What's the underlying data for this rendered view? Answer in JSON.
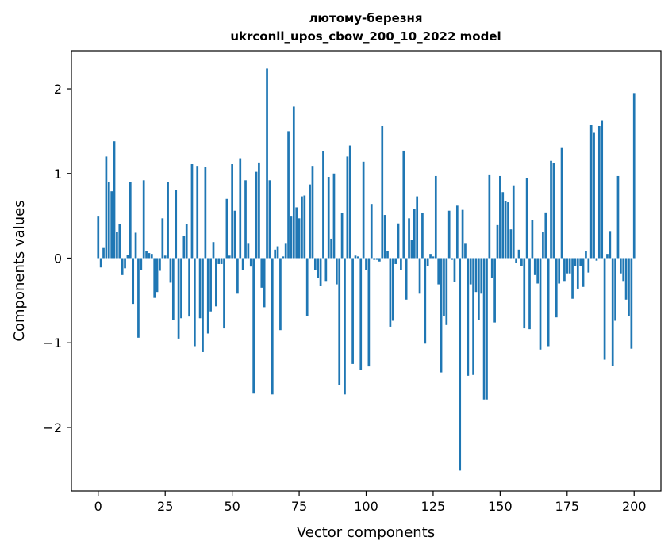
{
  "chart_data": {
    "type": "bar",
    "title_line1": "лютому-березня",
    "title_line2": "ukrconll_upos_cbow_200_10_2022 model",
    "xlabel": "Vector components",
    "ylabel": "Components values",
    "xlim": [
      -10,
      210
    ],
    "ylim": [
      -2.75,
      2.45
    ],
    "xticks": [
      0,
      25,
      50,
      75,
      100,
      125,
      150,
      175,
      200
    ],
    "yticks": [
      2,
      1,
      0,
      -1,
      -2
    ],
    "ytick_labels": [
      "2",
      "1",
      "0",
      "−1",
      "−2"
    ],
    "bar_color": "#1f77b4",
    "values": [
      0.5,
      -0.11,
      0.12,
      1.2,
      0.9,
      0.79,
      1.38,
      0.31,
      0.4,
      -0.2,
      -0.12,
      0.04,
      0.9,
      -0.54,
      0.3,
      -0.94,
      -0.14,
      0.92,
      0.08,
      0.06,
      0.05,
      -0.47,
      -0.4,
      -0.15,
      0.47,
      0.03,
      0.9,
      -0.29,
      -0.73,
      0.81,
      -0.95,
      -0.71,
      0.26,
      0.4,
      -0.69,
      1.11,
      -1.04,
      1.09,
      -0.71,
      -1.11,
      1.08,
      -0.89,
      -0.63,
      0.19,
      -0.57,
      -0.07,
      -0.07,
      -0.83,
      0.7,
      0.03,
      1.11,
      0.56,
      -0.42,
      1.18,
      -0.14,
      0.92,
      0.17,
      -0.1,
      -1.6,
      1.02,
      1.13,
      -0.35,
      -0.58,
      2.24,
      0.92,
      -1.61,
      0.1,
      0.14,
      -0.85,
      0.02,
      0.17,
      1.5,
      0.5,
      1.79,
      0.6,
      0.47,
      0.73,
      0.74,
      -0.68,
      0.87,
      1.09,
      -0.14,
      -0.23,
      -0.33,
      1.26,
      -0.27,
      0.96,
      0.23,
      1.0,
      -0.31,
      -1.5,
      0.53,
      -1.61,
      1.2,
      1.33,
      -1.25,
      0.03,
      0.02,
      -1.32,
      1.14,
      -0.14,
      -1.28,
      0.64,
      -0.02,
      -0.02,
      -0.04,
      1.56,
      0.51,
      0.08,
      -0.81,
      -0.74,
      -0.07,
      0.41,
      -0.14,
      1.27,
      -0.49,
      0.47,
      0.22,
      0.58,
      0.73,
      -0.42,
      0.53,
      -1.01,
      -0.09,
      0.05,
      0.02,
      0.97,
      -0.31,
      -1.35,
      -0.68,
      -0.79,
      0.56,
      -0.02,
      -0.28,
      0.62,
      -2.51,
      0.57,
      0.17,
      -1.39,
      -0.31,
      -1.38,
      -0.4,
      -0.73,
      -0.42,
      -1.67,
      -1.67,
      0.98,
      -0.23,
      -0.76,
      0.39,
      0.97,
      0.78,
      0.67,
      0.66,
      0.34,
      0.86,
      -0.06,
      0.1,
      -0.09,
      -0.83,
      0.95,
      -0.84,
      0.45,
      -0.2,
      -0.3,
      -1.08,
      0.31,
      0.54,
      -1.04,
      1.15,
      1.12,
      -0.7,
      -0.3,
      1.31,
      -0.27,
      -0.18,
      -0.18,
      -0.48,
      -0.09,
      -0.36,
      -0.09,
      -0.34,
      0.08,
      -0.17,
      1.57,
      1.48,
      -0.03,
      1.56,
      1.63,
      -1.2,
      0.05,
      0.32,
      -1.27,
      -0.74,
      0.97,
      -0.18,
      -0.27,
      -0.49,
      -0.68,
      -1.07,
      1.95
    ]
  }
}
